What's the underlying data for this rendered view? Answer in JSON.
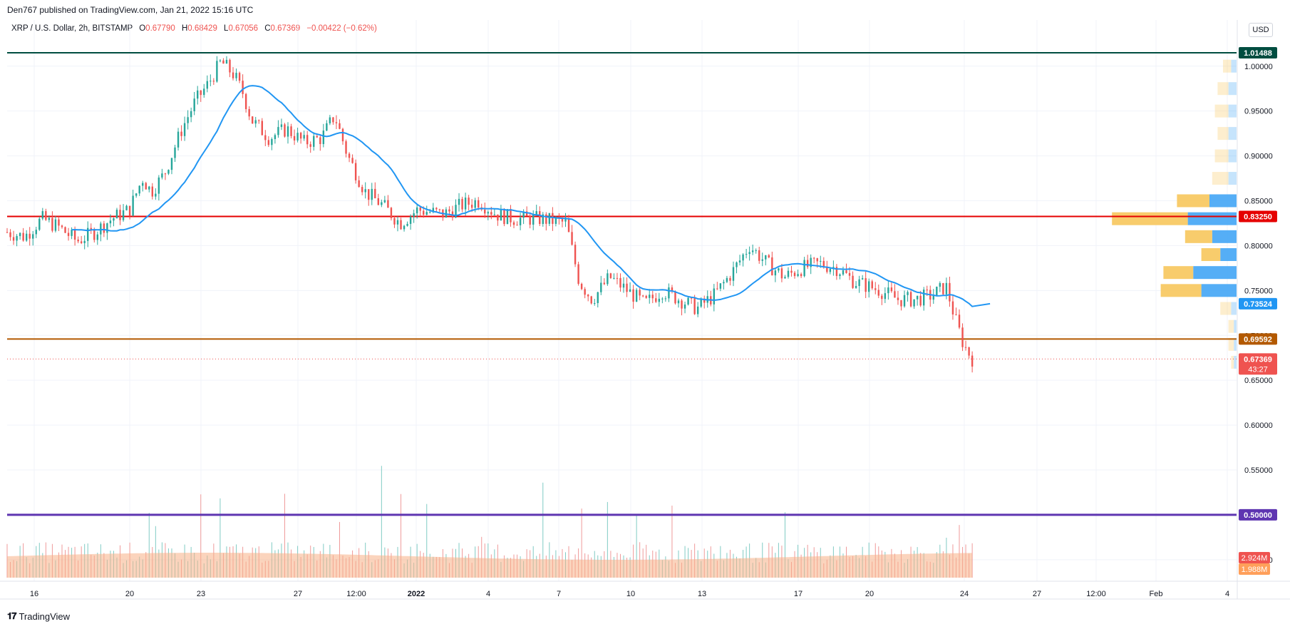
{
  "header": {
    "published": "Den767 published on TradingView.com, Jan 21, 2022 15:16 UTC"
  },
  "legend": {
    "symbol": "XRP / U.S. Dollar, 2h, BITSTAMP",
    "open_label": "O",
    "open": "0.67790",
    "high_label": "H",
    "high": "0.68429",
    "low_label": "L",
    "low": "0.67056",
    "close_label": "C",
    "close": "0.67369",
    "change": "−0.00422 (−0.62%)"
  },
  "currency_button": "USD",
  "footer": {
    "brand": "TradingView",
    "logo": "tv-logo-icon"
  },
  "colors": {
    "up": "#26a69a",
    "down": "#ef5350",
    "ma": "#2196f3",
    "line_top": "#004d40",
    "line_red": "#e50000",
    "line_orange": "#b35900",
    "line_purple": "#5e35b1",
    "vp_up": "#f7c75c",
    "vp_down": "#42a5f5",
    "volume_area": "#f7b086"
  },
  "chart_data": {
    "type": "candlestick",
    "ylim": [
      0.43,
      1.03
    ],
    "y_ticks": [
      "1.00000",
      "0.95000",
      "0.90000",
      "0.85000",
      "0.80000",
      "0.75000",
      "0.70000",
      "0.65000",
      "0.60000",
      "0.55000",
      "0.50000",
      "0.45000"
    ],
    "x_ticks": [
      "16",
      "20",
      "23",
      "27",
      "12:00",
      "2022",
      "4",
      "7",
      "10",
      "13",
      "17",
      "20",
      "24",
      "27",
      "12:00",
      "Feb",
      "4"
    ],
    "horizontal_levels": [
      {
        "value": 1.01488,
        "label": "1.01488",
        "color": "#004d40"
      },
      {
        "value": 0.8325,
        "label": "0.83250",
        "color": "#e50000"
      },
      {
        "value": 0.69592,
        "label": "0.69592",
        "color": "#b35900"
      },
      {
        "value": 0.5,
        "label": "0.50000",
        "color": "#5e35b1"
      }
    ],
    "ma_last": {
      "value": 0.73524,
      "label": "0.73524"
    },
    "last_price": {
      "value": 0.67369,
      "label": "0.67369",
      "countdown": "43:27"
    },
    "volume_labels": [
      {
        "label": "2.924M",
        "color": "#ef5350"
      },
      {
        "label": "1.988M",
        "color": "#ff9f5a"
      }
    ],
    "price_path": [
      [
        0,
        0.815
      ],
      [
        0.02,
        0.81
      ],
      [
        0.04,
        0.83
      ],
      [
        0.06,
        0.82
      ],
      [
        0.08,
        0.805
      ],
      [
        0.1,
        0.815
      ],
      [
        0.12,
        0.83
      ],
      [
        0.14,
        0.84
      ],
      [
        0.155,
        0.875
      ],
      [
        0.165,
        0.86
      ],
      [
        0.18,
        0.88
      ],
      [
        0.2,
        0.93
      ],
      [
        0.215,
        0.96
      ],
      [
        0.23,
        0.98
      ],
      [
        0.245,
        1.005
      ],
      [
        0.26,
        0.99
      ],
      [
        0.27,
        0.97
      ],
      [
        0.28,
        0.94
      ],
      [
        0.3,
        0.92
      ],
      [
        0.32,
        0.93
      ],
      [
        0.34,
        0.915
      ],
      [
        0.36,
        0.92
      ],
      [
        0.375,
        0.945
      ],
      [
        0.39,
        0.9
      ],
      [
        0.41,
        0.86
      ],
      [
        0.43,
        0.845
      ],
      [
        0.45,
        0.825
      ],
      [
        0.47,
        0.84
      ],
      [
        0.5,
        0.835
      ],
      [
        0.52,
        0.845
      ],
      [
        0.54,
        0.85
      ],
      [
        0.56,
        0.835
      ],
      [
        0.58,
        0.83
      ],
      [
        0.61,
        0.83
      ],
      [
        0.64,
        0.825
      ],
      [
        0.655,
        0.76
      ],
      [
        0.67,
        0.74
      ],
      [
        0.69,
        0.765
      ],
      [
        0.71,
        0.75
      ],
      [
        0.73,
        0.735
      ],
      [
        0.75,
        0.75
      ],
      [
        0.77,
        0.74
      ],
      [
        0.79,
        0.73
      ],
      [
        0.81,
        0.745
      ],
      [
        0.83,
        0.77
      ],
      [
        0.85,
        0.8
      ],
      [
        0.87,
        0.78
      ],
      [
        0.89,
        0.765
      ],
      [
        0.91,
        0.775
      ],
      [
        0.93,
        0.78
      ],
      [
        0.95,
        0.775
      ],
      [
        0.97,
        0.76
      ],
      [
        1.0,
        0.75
      ],
      [
        1.02,
        0.74
      ],
      [
        1.04,
        0.74
      ],
      [
        1.06,
        0.745
      ],
      [
        1.075,
        0.755
      ],
      [
        1.085,
        0.72
      ],
      [
        1.095,
        0.69
      ],
      [
        1.105,
        0.674
      ]
    ],
    "volume_profile": [
      {
        "price": 1.0,
        "up": 0.03,
        "down": 0.02
      },
      {
        "price": 0.975,
        "up": 0.04,
        "down": 0.03
      },
      {
        "price": 0.95,
        "up": 0.05,
        "down": 0.03
      },
      {
        "price": 0.925,
        "up": 0.04,
        "down": 0.03
      },
      {
        "price": 0.9,
        "up": 0.05,
        "down": 0.03
      },
      {
        "price": 0.875,
        "up": 0.06,
        "down": 0.03
      },
      {
        "price": 0.85,
        "up": 0.12,
        "down": 0.1
      },
      {
        "price": 0.83,
        "up": 0.28,
        "down": 0.18
      },
      {
        "price": 0.81,
        "up": 0.1,
        "down": 0.09
      },
      {
        "price": 0.79,
        "up": 0.07,
        "down": 0.06
      },
      {
        "price": 0.77,
        "up": 0.11,
        "down": 0.16
      },
      {
        "price": 0.75,
        "up": 0.15,
        "down": 0.13
      },
      {
        "price": 0.73,
        "up": 0.04,
        "down": 0.02
      },
      {
        "price": 0.71,
        "up": 0.02,
        "down": 0.01
      },
      {
        "price": 0.69,
        "up": 0.02,
        "down": 0.01
      },
      {
        "price": 0.67,
        "up": 0.01,
        "down": 0.01
      }
    ]
  }
}
